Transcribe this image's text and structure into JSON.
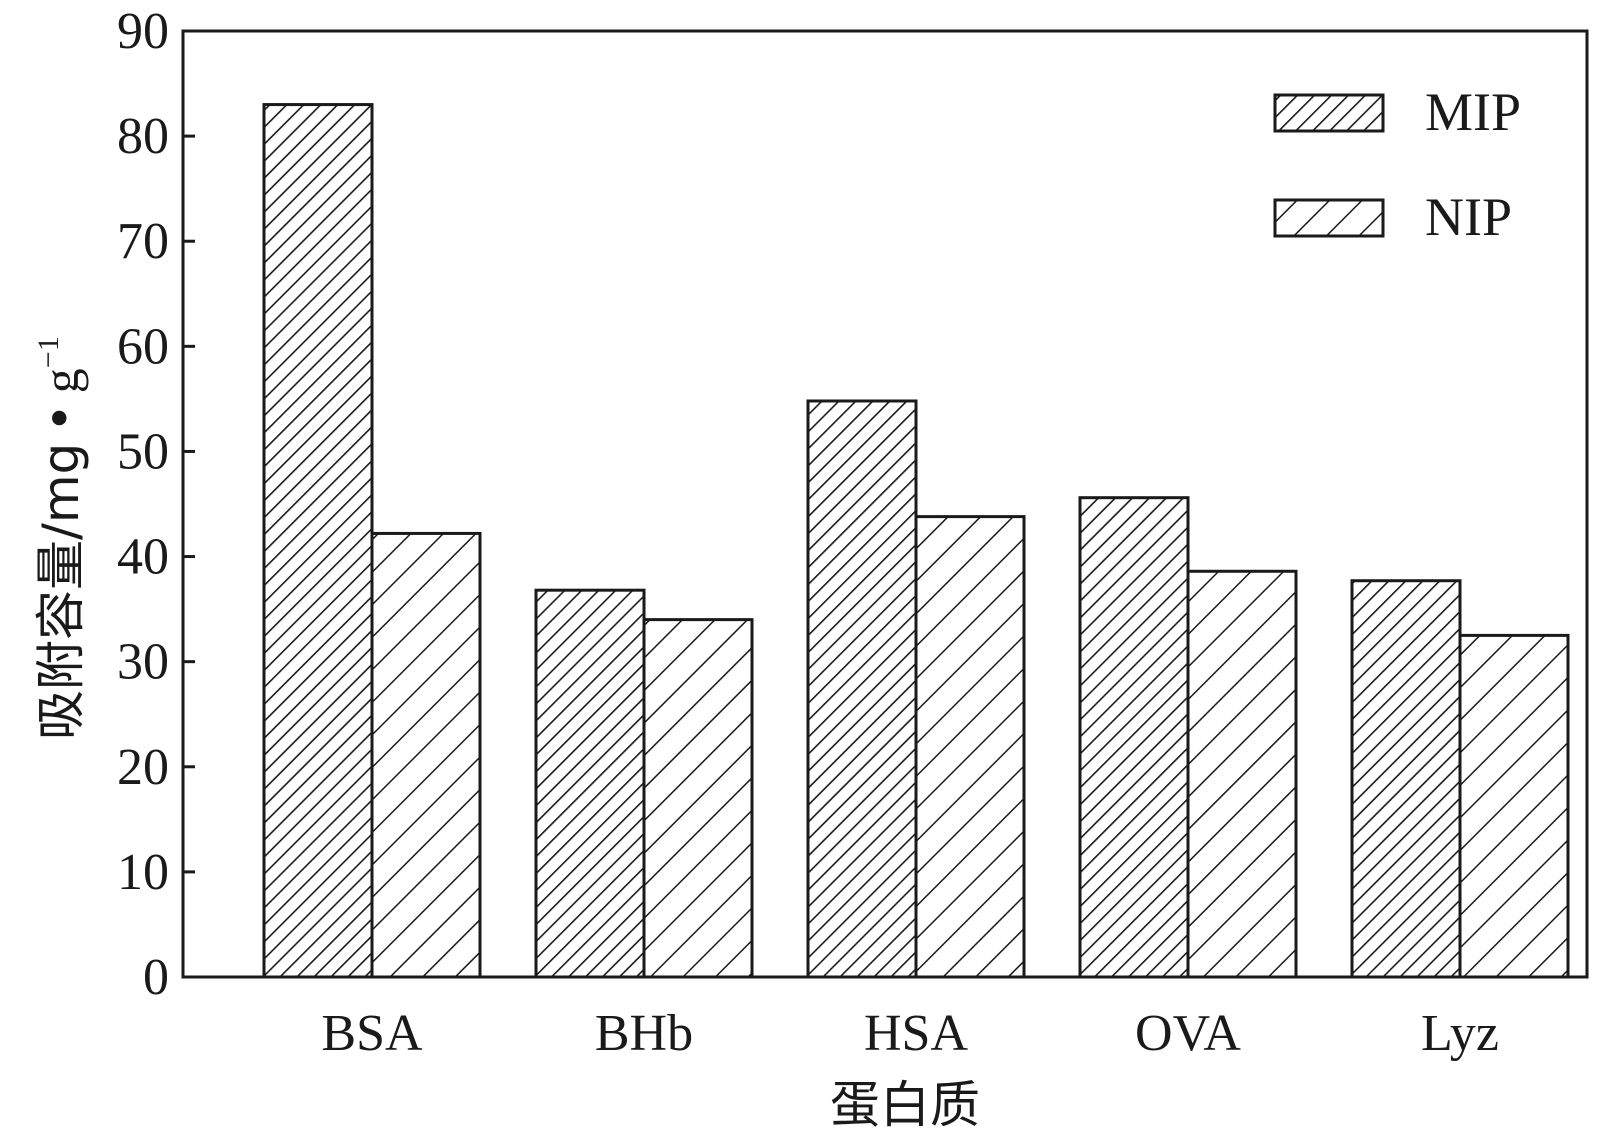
{
  "chart_data": {
    "type": "bar",
    "categories": [
      "BSA",
      "BHb",
      "HSA",
      "OVA",
      "Lyz"
    ],
    "series": [
      {
        "name": "MIP",
        "values": [
          83.0,
          36.8,
          54.8,
          45.6,
          37.7
        ],
        "pattern": "dense-hatch"
      },
      {
        "name": "NIP",
        "values": [
          42.2,
          34.0,
          43.8,
          38.6,
          32.5
        ],
        "pattern": "sparse-hatch"
      }
    ],
    "xlabel": "蛋白质",
    "ylabel": "吸附容量/mg",
    "ylabel_unit_dot": "•",
    "ylabel_unit_base": "g",
    "ylabel_unit_sup": "−1",
    "ylim": [
      0,
      90
    ],
    "yticks": [
      0,
      10,
      20,
      30,
      40,
      50,
      60,
      70,
      80,
      90
    ],
    "grid": false,
    "legend_position": "top-right",
    "colors": {
      "stroke": "#1a1a1a",
      "fill": "#ffffff"
    }
  }
}
